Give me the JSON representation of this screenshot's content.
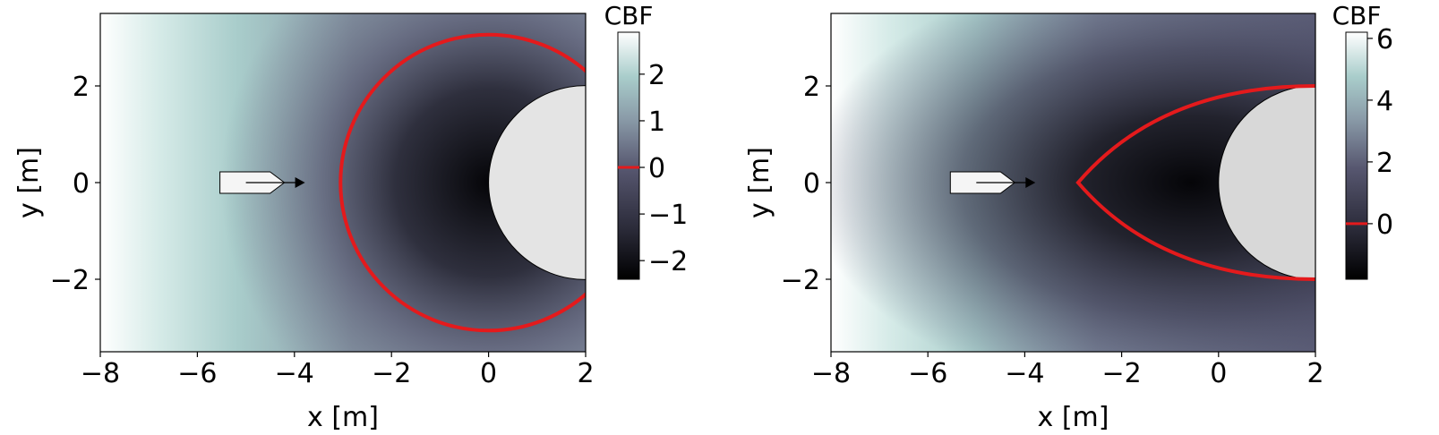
{
  "chart_data": [
    {
      "type": "heatmap",
      "title": "",
      "xlabel": "x [m]",
      "ylabel": "y [m]",
      "xlim": [
        -8,
        2
      ],
      "ylim": [
        -3.5,
        3.5
      ],
      "xticks": [
        -8,
        -6,
        -4,
        -2,
        0,
        2
      ],
      "yticks": [
        -2,
        0,
        2
      ],
      "xtick_labels": [
        "−8",
        "−6",
        "−4",
        "−2",
        "0",
        "2"
      ],
      "ytick_labels": [
        "−2",
        "0",
        "2"
      ],
      "colorbar": {
        "title": "CBF",
        "range": [
          -2.4,
          2.9
        ],
        "ticks": [
          -2,
          -1,
          0,
          1,
          2
        ],
        "tick_labels": [
          "−2",
          "−1",
          "0",
          "1",
          "2"
        ],
        "zero_level_color": "#e41a1c"
      },
      "obstacle": {
        "shape": "circle",
        "center": [
          2,
          0
        ],
        "radius": 2
      },
      "vehicle": {
        "position": [
          -5,
          0
        ],
        "heading": [
          1,
          0
        ]
      },
      "zero_contour": {
        "shape": "circle",
        "center": [
          0,
          0
        ],
        "radius": 3.05,
        "color": "#e41a1c"
      }
    },
    {
      "type": "heatmap",
      "title": "",
      "xlabel": "x [m]",
      "ylabel": "y [m]",
      "xlim": [
        -8,
        2
      ],
      "ylim": [
        -3.5,
        3.5
      ],
      "xticks": [
        -8,
        -6,
        -4,
        -2,
        0,
        2
      ],
      "yticks": [
        -2,
        0,
        2
      ],
      "xtick_labels": [
        "−8",
        "−6",
        "−4",
        "−2",
        "0",
        "2"
      ],
      "ytick_labels": [
        "−2",
        "0",
        "2"
      ],
      "colorbar": {
        "title": "CBF",
        "range": [
          -1.8,
          6.2
        ],
        "ticks": [
          0,
          2,
          4,
          6
        ],
        "tick_labels": [
          "0",
          "2",
          "4",
          "6"
        ],
        "zero_level_color": "#e41a1c"
      },
      "obstacle": {
        "shape": "circle",
        "center": [
          2,
          0
        ],
        "radius": 2
      },
      "vehicle": {
        "position": [
          -5,
          0
        ],
        "heading": [
          1,
          0
        ]
      },
      "zero_contour": {
        "shape": "cusp",
        "vertex": [
          -2.9,
          0
        ],
        "ends": [
          [
            2,
            2
          ],
          [
            2,
            -2
          ]
        ],
        "color": "#e41a1c"
      }
    }
  ],
  "colormap": [
    "#000000",
    "#2a2a38",
    "#575770",
    "#8a9ba8",
    "#a9cdcb",
    "#ffffff"
  ]
}
